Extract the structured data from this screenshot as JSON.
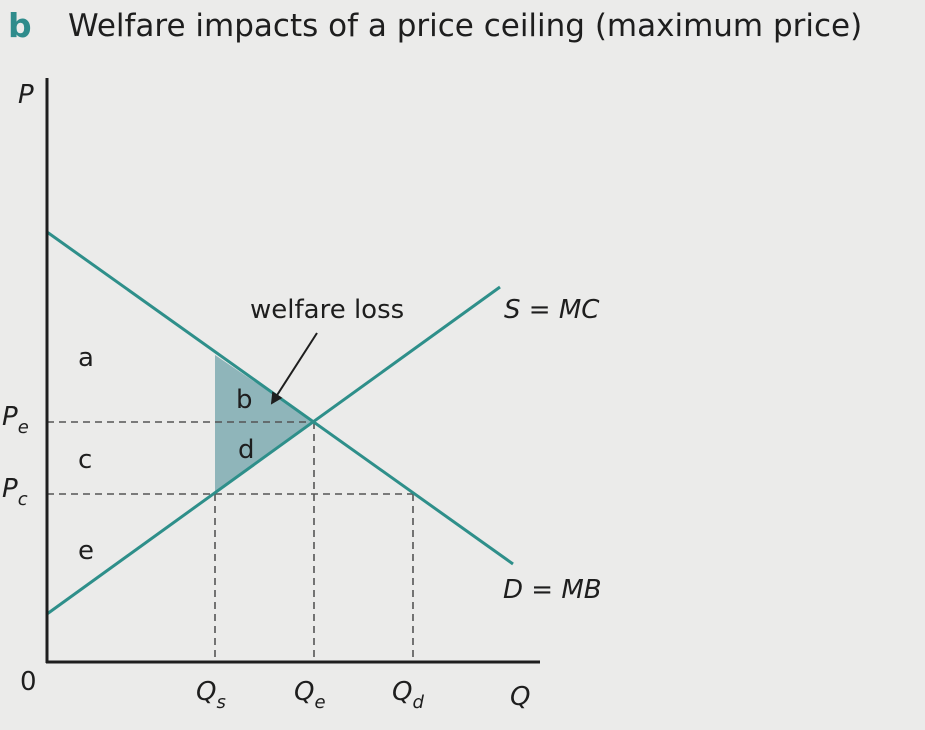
{
  "figure": {
    "letter": "b",
    "title": "Welfare impacts of a price ceiling (maximum price)"
  },
  "colors": {
    "accent": "#2f8c8c",
    "curve": "#2e8f8a",
    "shade": "#8fb5ba",
    "axis": "#1e1e1e",
    "guide": "#555555"
  },
  "axes": {
    "y_label": "P",
    "x_label": "Q",
    "origin": "0",
    "price_ticks": [
      {
        "main": "P",
        "sub": "e"
      },
      {
        "main": "P",
        "sub": "c"
      }
    ],
    "quantity_ticks": [
      {
        "main": "Q",
        "sub": "s"
      },
      {
        "main": "Q",
        "sub": "e"
      },
      {
        "main": "Q",
        "sub": "d"
      }
    ]
  },
  "curves": {
    "supply": "S = MC",
    "demand": "D = MB"
  },
  "areas": {
    "a": "a",
    "b": "b",
    "c": "c",
    "d": "d",
    "e": "e"
  },
  "annotation": "welfare loss"
}
